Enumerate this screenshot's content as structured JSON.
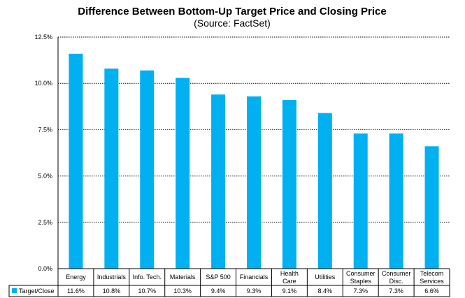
{
  "chart_data": {
    "type": "bar",
    "title": "Difference Between Bottom-Up Target Price and Closing Price",
    "subtitle": "(Source: FactSet)",
    "categories": [
      [
        "Energy"
      ],
      [
        "Industrials"
      ],
      [
        "Info. Tech."
      ],
      [
        "Materials"
      ],
      [
        "S&P 500"
      ],
      [
        "Financials"
      ],
      [
        "Health",
        "Care"
      ],
      [
        "Utilities"
      ],
      [
        "Consumer",
        "Staples"
      ],
      [
        "Consumer",
        "Disc."
      ],
      [
        "Telecom",
        "Services"
      ]
    ],
    "series": [
      {
        "name": "Target/Close",
        "values": [
          11.6,
          10.8,
          10.7,
          10.3,
          9.4,
          9.3,
          9.1,
          8.4,
          7.3,
          7.3,
          6.6
        ],
        "labels": [
          "11.6%",
          "10.8%",
          "10.7%",
          "10.3%",
          "9.4%",
          "9.3%",
          "9.1%",
          "8.4%",
          "7.3%",
          "7.3%",
          "6.6%"
        ]
      }
    ],
    "ylim": [
      0,
      12.5
    ],
    "yticks": [
      "0.0%",
      "2.5%",
      "5.0%",
      "7.5%",
      "10.0%",
      "12.5%"
    ],
    "ytick_values": [
      0,
      2.5,
      5,
      7.5,
      10,
      12.5
    ],
    "grid": true,
    "legend": "data-table",
    "bar_color": "#00B0F0"
  }
}
